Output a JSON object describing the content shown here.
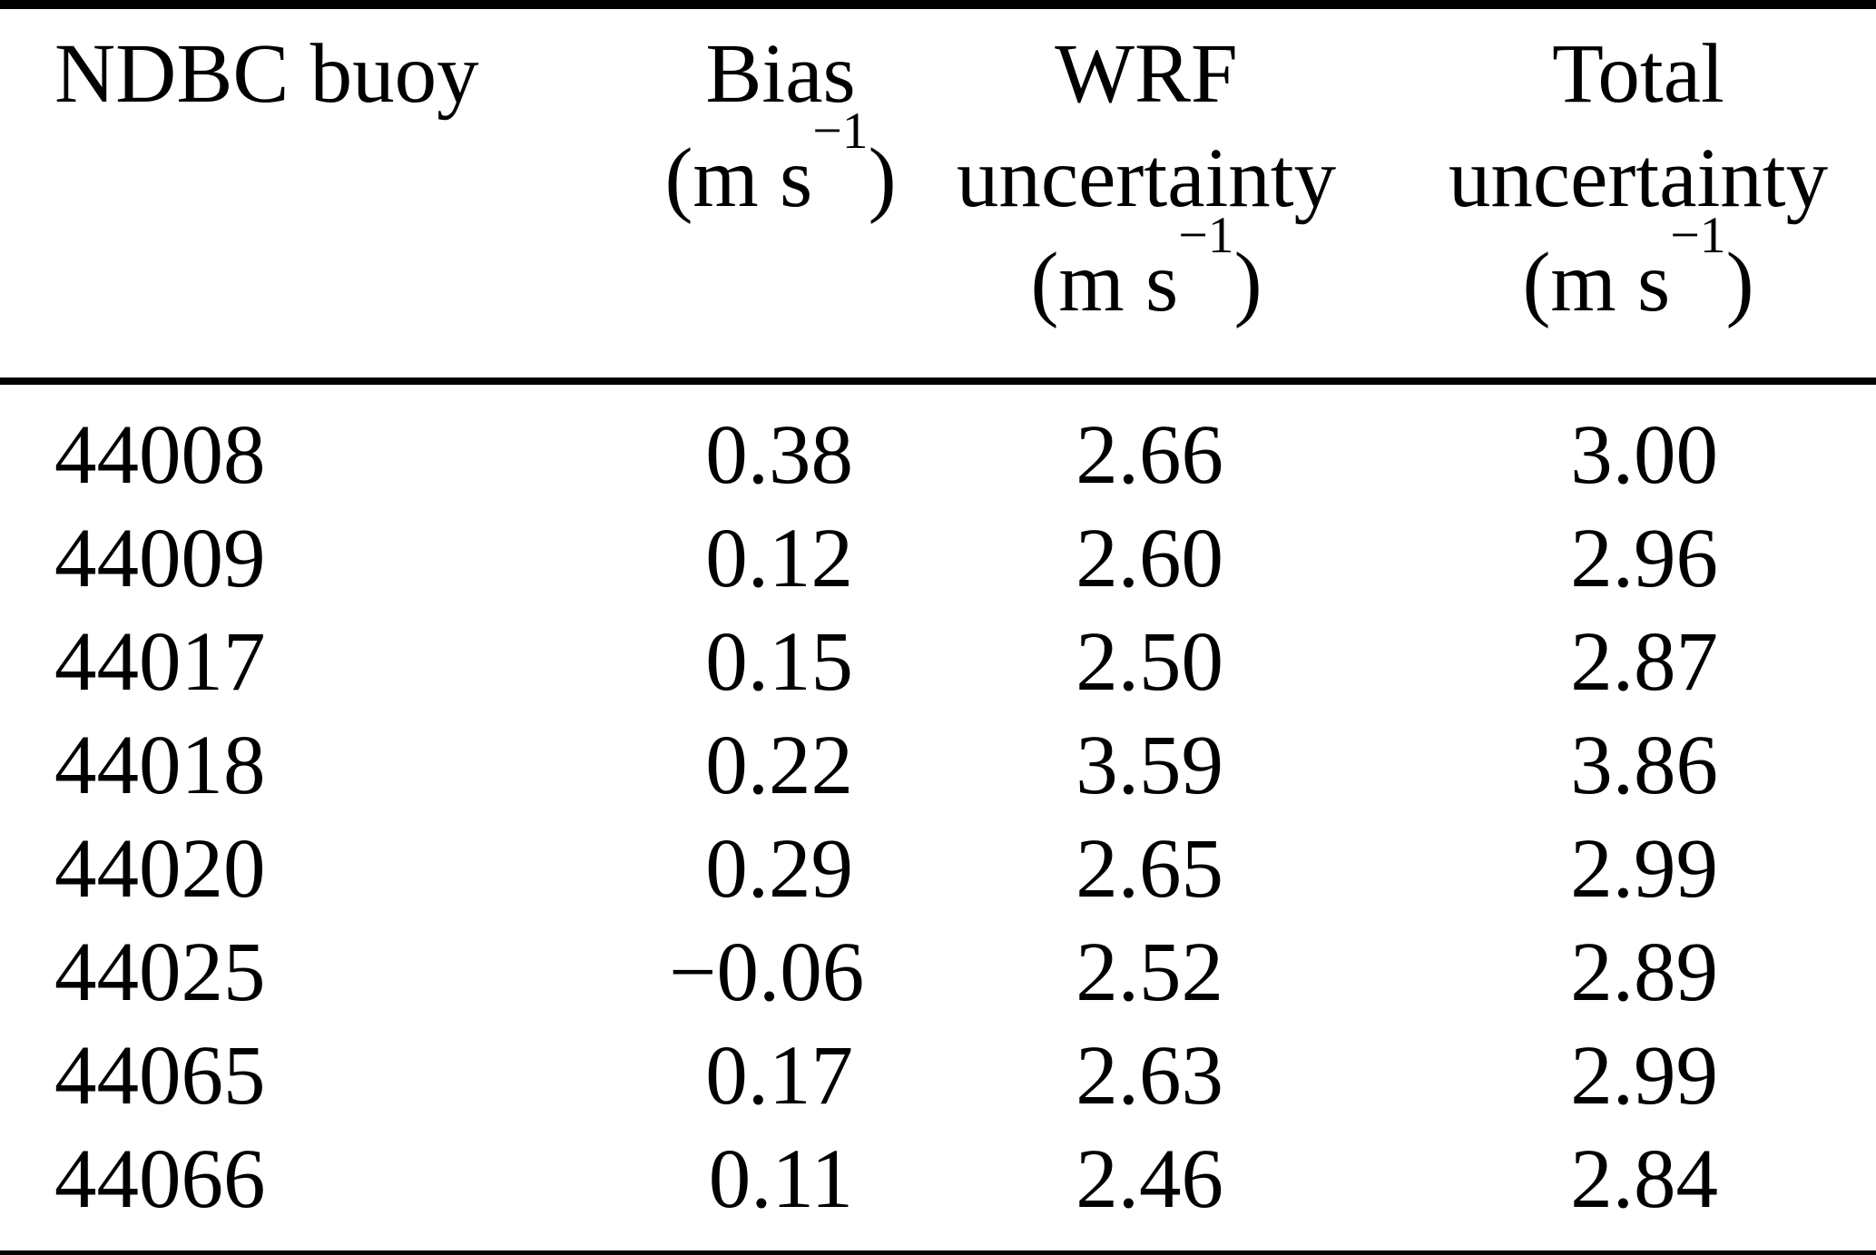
{
  "page": {
    "background_color": "#ffffff",
    "text_color": "#000000",
    "rule_color": "#000000"
  },
  "table": {
    "header": {
      "buoy": "NDBC buoy",
      "bias": {
        "title": "Bias",
        "unit_open": "(m s",
        "unit_sup": "−1",
        "unit_close": ")"
      },
      "wrf": {
        "title": "WRF",
        "subtitle": "uncertainty",
        "unit_open": "(m s",
        "unit_sup": "−1",
        "unit_close": ")"
      },
      "total": {
        "title": "Total",
        "subtitle": "uncertainty",
        "unit_open": "(m s",
        "unit_sup": "−1",
        "unit_close": ")"
      }
    },
    "rows": [
      {
        "buoy": "44008",
        "bias": "0.38",
        "wrf": "2.66",
        "total": "3.00"
      },
      {
        "buoy": "44009",
        "bias": "0.12",
        "wrf": "2.60",
        "total": "2.96"
      },
      {
        "buoy": "44017",
        "bias": "0.15",
        "wrf": "2.50",
        "total": "2.87"
      },
      {
        "buoy": "44018",
        "bias": "0.22",
        "wrf": "3.59",
        "total": "3.86"
      },
      {
        "buoy": "44020",
        "bias": "0.29",
        "wrf": "2.65",
        "total": "2.99"
      },
      {
        "buoy": "44025",
        "bias": "−0.06",
        "wrf": "2.52",
        "total": "2.89"
      },
      {
        "buoy": "44065",
        "bias": "0.17",
        "wrf": "2.63",
        "total": "2.99"
      },
      {
        "buoy": "44066",
        "bias": "0.11",
        "wrf": "2.46",
        "total": "2.84"
      }
    ]
  }
}
